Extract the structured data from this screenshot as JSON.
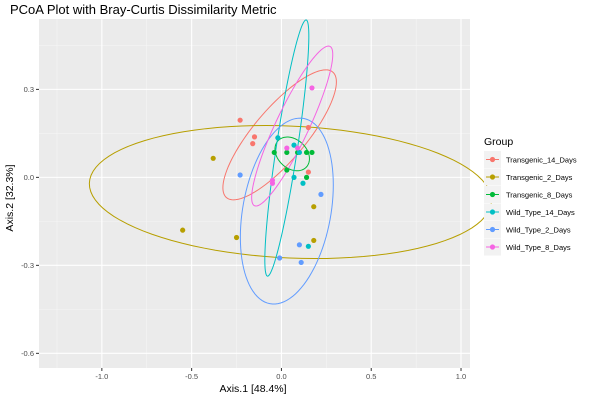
{
  "chart_data": {
    "type": "scatter",
    "title": "PCoA Plot with Bray-Curtis Dissimilarity Metric",
    "xlabel": "Axis.1   [48.4%]",
    "ylabel": "Axis.2   [32.3%]",
    "xlim": [
      -1.35,
      1.05
    ],
    "ylim": [
      -0.65,
      0.54
    ],
    "xticks": [
      -1.0,
      -0.5,
      0.0,
      0.5,
      1.0
    ],
    "xtick_labels": [
      "-1.0",
      "-0.5",
      "0.0",
      "0.5",
      "1.0"
    ],
    "yticks": [
      -0.6,
      -0.3,
      0.0,
      0.3
    ],
    "ytick_labels": [
      "-0.6",
      "-0.3",
      "0.0",
      "0.3"
    ],
    "grid": true,
    "legend": {
      "title": "Group",
      "position": "right"
    },
    "series": [
      {
        "name": "Transgenic_14_Days",
        "color": "#F8766D",
        "points": [
          [
            -0.23,
            0.195
          ],
          [
            -0.15,
            0.138
          ],
          [
            -0.16,
            0.115
          ],
          [
            0.15,
            0.17
          ],
          [
            0.15,
            0.018
          ]
        ],
        "ellipse": {
          "cx": -0.01,
          "cy": 0.145,
          "rx": 0.37,
          "ry": 0.11,
          "angle_deg": 33
        }
      },
      {
        "name": "Transgenic_2_Days",
        "color": "#B79F00",
        "points": [
          [
            -0.55,
            -0.18
          ],
          [
            -0.38,
            0.065
          ],
          [
            -0.25,
            -0.205
          ],
          [
            0.18,
            -0.1
          ],
          [
            0.18,
            -0.215
          ]
        ],
        "ellipse": {
          "cx": 0.05,
          "cy": -0.05,
          "rx": 1.12,
          "ry": 0.225,
          "angle_deg": -1.5
        }
      },
      {
        "name": "Transgenic_8_Days",
        "color": "#00BA38",
        "points": [
          [
            -0.04,
            0.085
          ],
          [
            0.03,
            0.085
          ],
          [
            0.09,
            0.085
          ],
          [
            0.14,
            0.085
          ],
          [
            0.17,
            0.085
          ],
          [
            0.03,
            0.025
          ],
          [
            0.14,
            0.0
          ]
        ],
        "ellipse": {
          "cx": 0.06,
          "cy": 0.08,
          "rx": 0.098,
          "ry": 0.054,
          "angle_deg": -14
        }
      },
      {
        "name": "Wild_Type_14_Days",
        "color": "#00BFC4",
        "points": [
          [
            -0.02,
            0.135
          ],
          [
            0.07,
            0.11
          ],
          [
            0.1,
            0.085
          ],
          [
            0.07,
            0.0
          ],
          [
            0.12,
            -0.02
          ],
          [
            0.15,
            -0.235
          ]
        ],
        "ellipse": {
          "cx": 0.03,
          "cy": 0.1,
          "rx": 0.45,
          "ry": 0.058,
          "angle_deg": 76
        }
      },
      {
        "name": "Wild_Type_2_Days",
        "color": "#619CFF",
        "points": [
          [
            -0.23,
            0.008
          ],
          [
            -0.01,
            -0.275
          ],
          [
            0.1,
            -0.23
          ],
          [
            0.11,
            -0.29
          ],
          [
            0.22,
            -0.058
          ]
        ],
        "ellipse": {
          "cx": 0.03,
          "cy": -0.115,
          "rx": 0.335,
          "ry": 0.235,
          "angle_deg": 63
        }
      },
      {
        "name": "Wild_Type_8_Days",
        "color": "#F564E3",
        "points": [
          [
            0.17,
            0.305
          ],
          [
            0.03,
            0.1
          ],
          [
            0.09,
            0.1
          ],
          [
            -0.05,
            -0.01
          ],
          [
            -0.05,
            -0.02
          ]
        ],
        "ellipse": {
          "cx": 0.06,
          "cy": 0.175,
          "rx": 0.345,
          "ry": 0.08,
          "angle_deg": 51
        }
      }
    ]
  }
}
